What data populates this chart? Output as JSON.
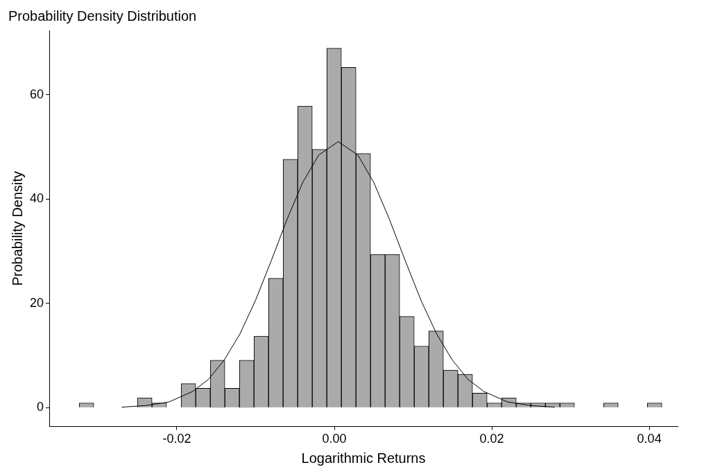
{
  "chart_data": {
    "type": "histogram",
    "title": "Probability Density Distribution",
    "xlabel": "Logarithmic Returns",
    "ylabel": "Probability Density",
    "bins": [
      -0.0324,
      -0.03055,
      -0.0287,
      -0.02685,
      -0.025,
      -0.02315,
      -0.0213,
      -0.01945,
      -0.0176,
      -0.01575,
      -0.0139,
      -0.01205,
      -0.0102,
      -0.00835,
      -0.0065,
      -0.00465,
      -0.0028,
      -0.00095,
      0.0009,
      0.00275,
      0.0046,
      0.00645,
      0.0083,
      0.01015,
      0.012,
      0.01385,
      0.0157,
      0.01755,
      0.0194,
      0.02125,
      0.0231,
      0.02495,
      0.0268,
      0.02865,
      0.0305,
      0.03235,
      0.0342,
      0.03605,
      0.0379,
      0.03975,
      0.0416
    ],
    "series": [
      {
        "color": "#aaaaaa",
        "values": [
          0.9,
          0,
          0,
          0,
          1.9,
          0.9,
          0,
          4.6,
          3.7,
          9.1,
          3.7,
          9.1,
          13.7,
          24.8,
          47.6,
          57.8,
          49.5,
          68.9,
          65.2,
          48.7,
          29.4,
          29.4,
          17.5,
          11.8,
          14.7,
          7.2,
          6.4,
          2.8,
          0.9,
          1.9,
          0.9,
          0.9,
          0.9,
          0.9,
          0,
          0,
          0.9,
          0,
          0,
          0.9
        ]
      },
      {
        "type": "line",
        "color": "#000000",
        "marker": "none",
        "x": [
          -0.027,
          -0.024,
          -0.021,
          -0.018,
          -0.016,
          -0.014,
          -0.012,
          -0.01,
          -0.008,
          -0.006,
          -0.004,
          -0.002,
          0.0005,
          0.003,
          0.005,
          0.007,
          0.009,
          0.011,
          0.013,
          0.015,
          0.017,
          0.019,
          0.022,
          0.025,
          0.028
        ],
        "values": [
          0.1,
          0.4,
          1.1,
          3.1,
          5.4,
          9.1,
          14.1,
          20.6,
          28.2,
          36.1,
          43.2,
          48.4,
          51,
          48.4,
          43.2,
          36.1,
          28.2,
          20.6,
          14.1,
          9.1,
          5.4,
          3.1,
          1.1,
          0.4,
          0.1
        ]
      }
    ],
    "xlim": [
      -0.0362,
      0.0436
    ],
    "xticks": [
      {
        "value": -0.02,
        "label": "-0.02"
      },
      {
        "value": 0,
        "label": "0.00"
      },
      {
        "value": 0.02,
        "label": "0.02"
      },
      {
        "value": 0.04,
        "label": "0.04"
      }
    ],
    "ylim": [
      -3.6,
      72.3
    ],
    "yticks": [
      0,
      20,
      40,
      60
    ],
    "grid": false,
    "legend": false
  }
}
